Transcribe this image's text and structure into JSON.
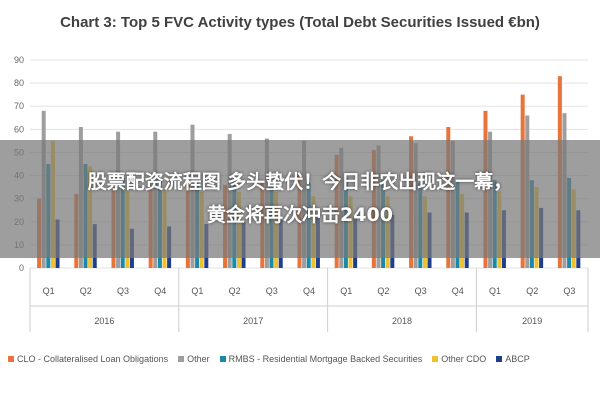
{
  "chart_data": {
    "type": "bar",
    "title": "Chart 3: Top 5 FVC Activity types (Total Debt Securities Issued €bn)",
    "ylim": [
      0,
      90
    ],
    "yticks": [
      0,
      10,
      20,
      30,
      40,
      50,
      60,
      70,
      80,
      90
    ],
    "categories": [
      "Q1",
      "Q2",
      "Q3",
      "Q4",
      "Q1",
      "Q2",
      "Q3",
      "Q4",
      "Q1",
      "Q2",
      "Q3",
      "Q4",
      "Q1",
      "Q2",
      "Q3"
    ],
    "years": [
      {
        "label": "2016",
        "span": 4
      },
      {
        "label": "2017",
        "span": 4
      },
      {
        "label": "2018",
        "span": 4
      },
      {
        "label": "2019",
        "span": 3
      }
    ],
    "series": [
      {
        "name": "CLO - Collateralised Loan Obligations",
        "color": "#e8743b",
        "values": [
          30,
          32,
          34,
          35,
          38,
          36,
          38,
          41,
          49,
          51,
          57,
          61,
          68,
          75,
          83
        ]
      },
      {
        "name": "Other",
        "color": "#9e9e9e",
        "values": [
          68,
          61,
          59,
          59,
          62,
          58,
          56,
          55,
          52,
          53,
          54,
          55,
          59,
          66,
          67
        ]
      },
      {
        "name": "RMBS - Residential Mortgage Backed Securities",
        "color": "#1a8aa8",
        "values": [
          45,
          45,
          39,
          38,
          39,
          38,
          36,
          37,
          39,
          38,
          37,
          38,
          38,
          38,
          39
        ]
      },
      {
        "name": "Other CDO",
        "color": "#efc030",
        "values": [
          55,
          44,
          35,
          34,
          33,
          33,
          33,
          31,
          31,
          31,
          31,
          32,
          33,
          35,
          34
        ]
      },
      {
        "name": "ABCP",
        "color": "#1f3f8c",
        "values": [
          21,
          19,
          17,
          18,
          19,
          20,
          21,
          22,
          22,
          23,
          24,
          24,
          25,
          26,
          25
        ]
      }
    ]
  },
  "overlay": {
    "line1": "股票配资流程图 多头蛰伏！今日非农出现这一幕，",
    "line2": "黄金将再次冲击2400"
  }
}
